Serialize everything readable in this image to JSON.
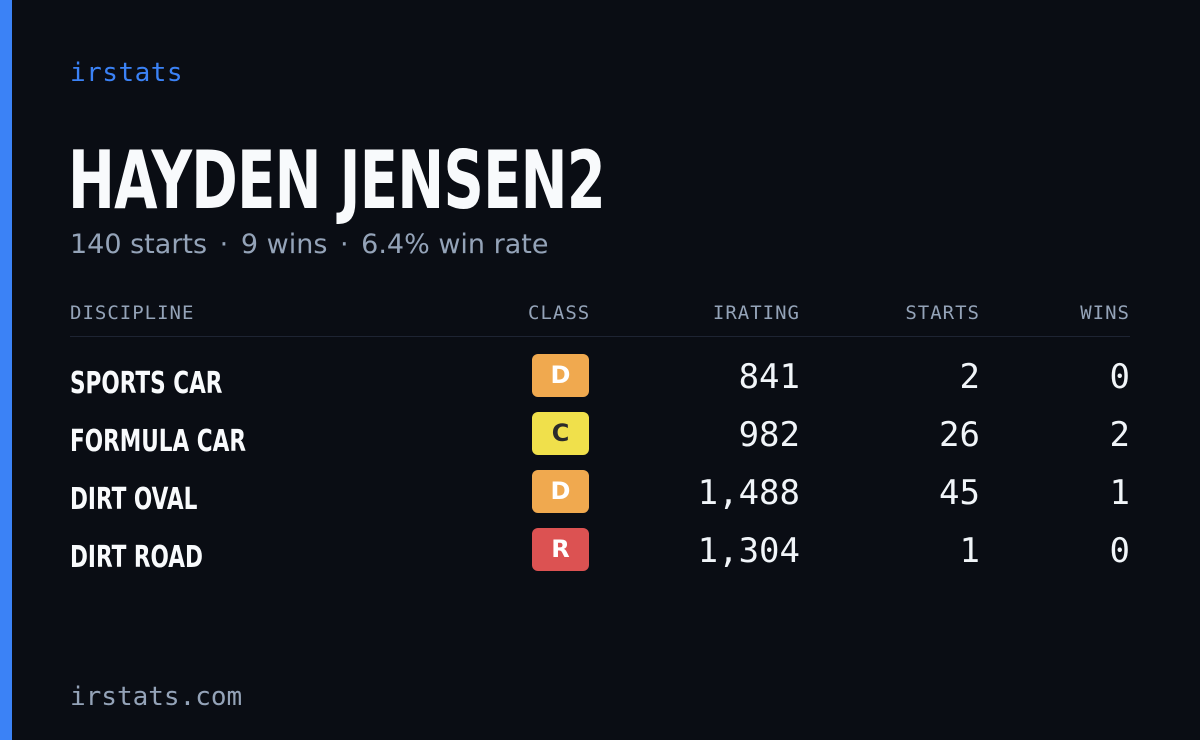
{
  "brand": "irstats",
  "driver": {
    "name": "HAYDEN JENSEN2",
    "starts_text": "140 starts",
    "wins_text": "9 wins",
    "win_rate_text": "6.4% win rate",
    "separator": "·"
  },
  "table": {
    "headers": {
      "discipline": "DISCIPLINE",
      "class": "CLASS",
      "irating": "IRATING",
      "starts": "STARTS",
      "wins": "WINS"
    },
    "rows": [
      {
        "discipline": "SPORTS CAR",
        "class": "D",
        "irating": "841",
        "starts": "2",
        "wins": "0"
      },
      {
        "discipline": "FORMULA CAR",
        "class": "C",
        "irating": "982",
        "starts": "26",
        "wins": "2"
      },
      {
        "discipline": "DIRT OVAL",
        "class": "D",
        "irating": "1,488",
        "starts": "45",
        "wins": "1"
      },
      {
        "discipline": "DIRT ROAD",
        "class": "R",
        "irating": "1,304",
        "starts": "1",
        "wins": "0"
      }
    ]
  },
  "class_colors": {
    "D": {
      "bg": "#f0a94f",
      "fg": "#ffffff"
    },
    "C": {
      "bg": "#f0e04b",
      "fg": "#2b2b2b"
    },
    "R": {
      "bg": "#dc5252",
      "fg": "#ffffff"
    }
  },
  "colors": {
    "accent": "#3b82f6",
    "background": "#0a0d14",
    "muted_text": "#94a3b8",
    "primary_text": "#f8fafc"
  },
  "footer": "irstats.com"
}
